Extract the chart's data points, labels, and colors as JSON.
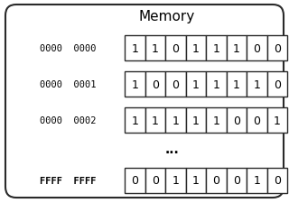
{
  "title": "Memory",
  "rows": [
    {
      "address": "0000  0000",
      "bits": [
        1,
        1,
        0,
        1,
        1,
        1,
        0,
        0
      ]
    },
    {
      "address": "0000  0001",
      "bits": [
        1,
        0,
        0,
        1,
        1,
        1,
        1,
        0
      ]
    },
    {
      "address": "0000  0002",
      "bits": [
        1,
        1,
        1,
        1,
        1,
        0,
        0,
        1
      ]
    },
    {
      "address": "FFFF  FFFF",
      "bits": [
        0,
        0,
        1,
        1,
        0,
        0,
        1,
        0
      ]
    }
  ],
  "dots": "...",
  "bg_color": "#ffffff",
  "border_color": "#2a2a2a",
  "cell_color": "#ffffff",
  "text_color": "#000000",
  "title_fontsize": 11,
  "addr_fontsize": 7.5,
  "bit_fontsize": 9,
  "dots_fontsize": 10,
  "figsize": [
    3.2,
    2.26
  ],
  "dpi": 100
}
